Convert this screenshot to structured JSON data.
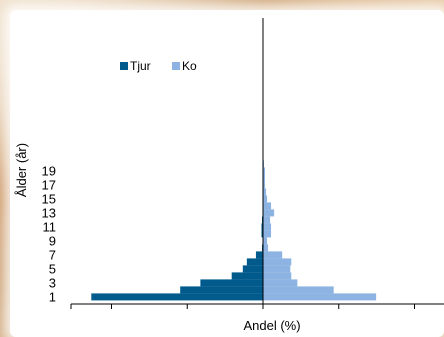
{
  "chart_data": {
    "type": "bar",
    "orientation": "horizontal",
    "style": "population-pyramid",
    "xlabel": "Andel (%)",
    "ylabel": "Ålder (år)",
    "categories": [
      1,
      2,
      3,
      4,
      5,
      6,
      7,
      8,
      9,
      10,
      11,
      12,
      13,
      14,
      15,
      16,
      17,
      18,
      19,
      20
    ],
    "y_ticks": [
      1,
      3,
      5,
      7,
      9,
      11,
      13,
      15,
      17,
      19
    ],
    "x_ticks_shown_without_labels": true,
    "legend_position": "top-left",
    "colors": {
      "Tjur": "#005a8c",
      "Ko": "#8db3e2",
      "axis": "#000000"
    },
    "series": [
      {
        "name": "Tjur",
        "side": "left",
        "values": [
          17.0,
          8.2,
          6.2,
          3.1,
          2.0,
          1.6,
          0.7,
          0.1,
          0.0,
          0.15,
          0.15,
          0.1,
          0.05,
          0.05,
          0.0,
          0.0,
          0.0,
          0.0,
          0.0,
          0.0
        ]
      },
      {
        "name": "Ko",
        "side": "right",
        "values": [
          11.2,
          7.0,
          3.4,
          2.8,
          2.7,
          2.8,
          1.9,
          0.5,
          0.4,
          0.8,
          0.8,
          0.7,
          1.1,
          0.8,
          0.4,
          0.3,
          0.2,
          0.2,
          0.2,
          0.1
        ]
      }
    ]
  }
}
